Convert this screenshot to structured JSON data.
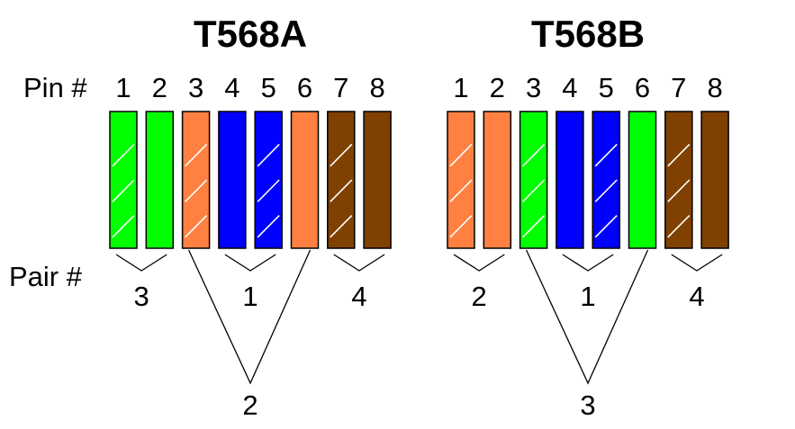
{
  "labels": {
    "pin": "Pin #",
    "pair": "Pair #"
  },
  "colors": {
    "green": "#00ff00",
    "orange": "#ff8040",
    "blue": "#0000ff",
    "brown": "#804000",
    "stripe": "#ffffff"
  },
  "standards": [
    {
      "title": "T568A",
      "pins": [
        {
          "pin": "1",
          "color": "green",
          "striped": true
        },
        {
          "pin": "2",
          "color": "green",
          "striped": false
        },
        {
          "pin": "3",
          "color": "orange",
          "striped": true
        },
        {
          "pin": "4",
          "color": "blue",
          "striped": false
        },
        {
          "pin": "5",
          "color": "blue",
          "striped": true
        },
        {
          "pin": "6",
          "color": "orange",
          "striped": false
        },
        {
          "pin": "7",
          "color": "brown",
          "striped": true
        },
        {
          "pin": "8",
          "color": "brown",
          "striped": false
        }
      ],
      "pairs": [
        {
          "label": "3",
          "pins": [
            1,
            2
          ]
        },
        {
          "label": "1",
          "pins": [
            4,
            5
          ]
        },
        {
          "label": "4",
          "pins": [
            7,
            8
          ]
        },
        {
          "label": "2",
          "pins": [
            3,
            6
          ]
        }
      ]
    },
    {
      "title": "T568B",
      "pins": [
        {
          "pin": "1",
          "color": "orange",
          "striped": true
        },
        {
          "pin": "2",
          "color": "orange",
          "striped": false
        },
        {
          "pin": "3",
          "color": "green",
          "striped": true
        },
        {
          "pin": "4",
          "color": "blue",
          "striped": false
        },
        {
          "pin": "5",
          "color": "blue",
          "striped": true
        },
        {
          "pin": "6",
          "color": "green",
          "striped": false
        },
        {
          "pin": "7",
          "color": "brown",
          "striped": true
        },
        {
          "pin": "8",
          "color": "brown",
          "striped": false
        }
      ],
      "pairs": [
        {
          "label": "2",
          "pins": [
            1,
            2
          ]
        },
        {
          "label": "1",
          "pins": [
            4,
            5
          ]
        },
        {
          "label": "4",
          "pins": [
            7,
            8
          ]
        },
        {
          "label": "3",
          "pins": [
            3,
            6
          ]
        }
      ]
    }
  ]
}
